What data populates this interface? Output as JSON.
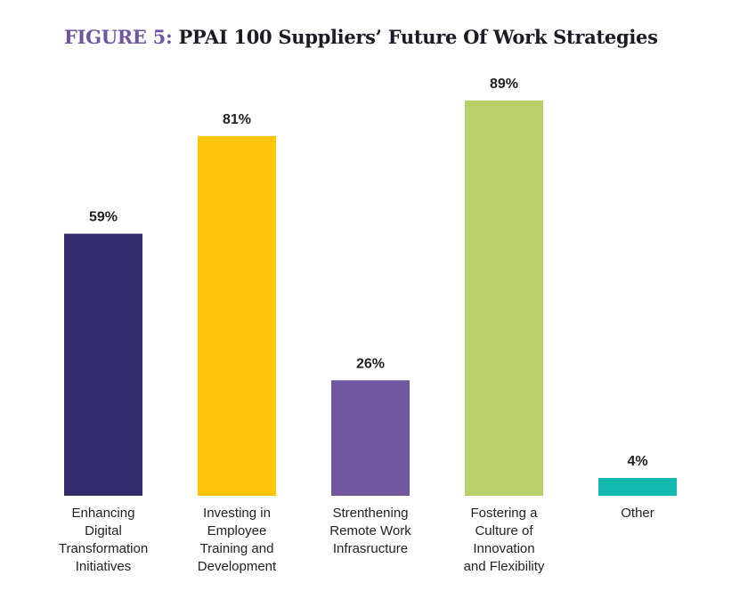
{
  "chart_data": {
    "type": "bar",
    "title_prefix": "FIGURE 5:",
    "title": "PPAI 100 Suppliers’ Future Of Work Strategies",
    "categories": [
      [
        "Enhancing",
        "Digital",
        "Transformation",
        "Initiatives"
      ],
      [
        "Investing in",
        "Employee",
        "Training and",
        "Development"
      ],
      [
        "Strenthening",
        "Remote Work",
        "Infrasructure"
      ],
      [
        "Fostering a",
        "Culture of",
        "Innovation",
        "and Flexibility"
      ],
      [
        "Other"
      ]
    ],
    "values": [
      59,
      81,
      26,
      89,
      4
    ],
    "value_labels": [
      "59%",
      "81%",
      "26%",
      "89%",
      "4%"
    ],
    "colors": [
      "#322c6c",
      "#fdc60a",
      "#7157a0",
      "#b8d06a",
      "#13b8ae"
    ],
    "title_accent_color": "#6f55a0",
    "ylim": [
      0,
      100
    ],
    "xlabel": "",
    "ylabel": "",
    "grid": false,
    "legend": "none"
  }
}
